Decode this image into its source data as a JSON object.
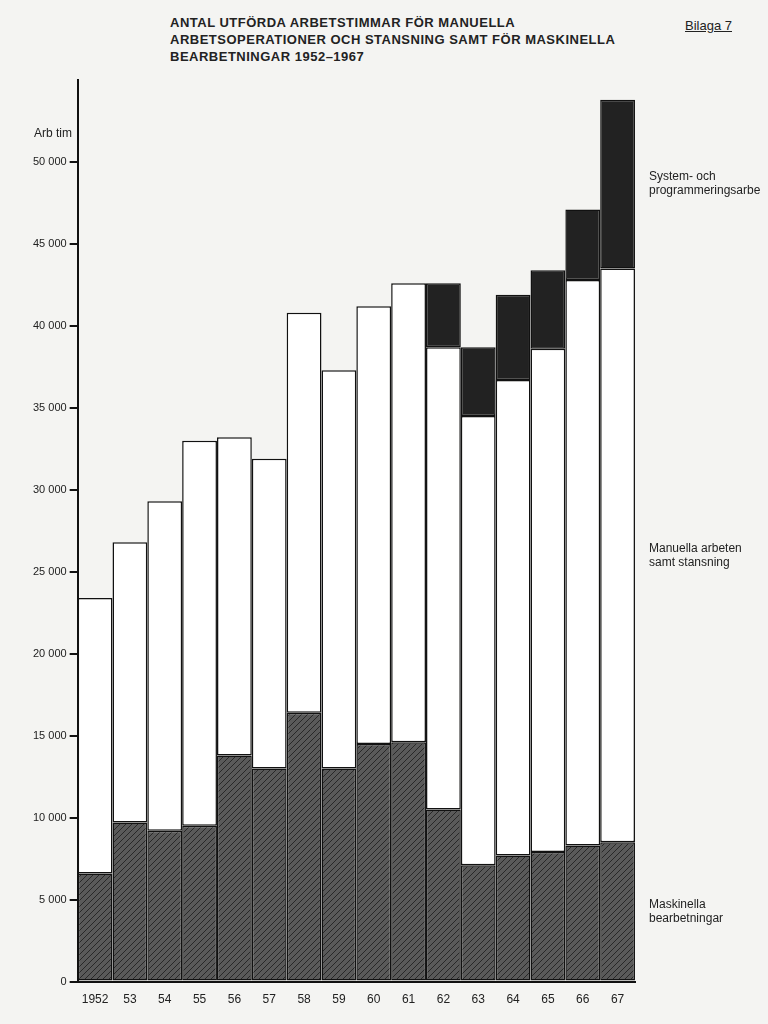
{
  "chart_data": {
    "type": "bar",
    "title": "ANTAL UTFÖRDA ARBETSTIMMAR FÖR MANUELLA ARBETSOPERATIONER OCH STANSNING SAMT FÖR MASKINELLA BEARBETNINGAR 1952–1967",
    "annotation": "Bilaga 7",
    "ylabel": "Arb tim",
    "categories": [
      "1952",
      "53",
      "54",
      "55",
      "56",
      "57",
      "58",
      "59",
      "60",
      "61",
      "62",
      "63",
      "64",
      "65",
      "66",
      "67"
    ],
    "series": [
      {
        "name": "Maskinella bearbetningar",
        "color": "#5a5a5a",
        "values": [
          6600,
          9700,
          9200,
          9500,
          13800,
          13000,
          16400,
          13000,
          14500,
          14600,
          10500,
          7100,
          7700,
          7900,
          8300,
          8500
        ]
      },
      {
        "name": "Manuella arbeten samt stansning",
        "color": "#ffffff",
        "values": [
          16800,
          17100,
          20100,
          23500,
          19400,
          18900,
          24400,
          24300,
          26700,
          28000,
          28200,
          27400,
          29000,
          30700,
          34500,
          35000
        ]
      },
      {
        "name": "System- och programmeringsarbete",
        "color": "#222222",
        "values": [
          null,
          null,
          null,
          null,
          null,
          null,
          null,
          null,
          null,
          null,
          3900,
          4200,
          5200,
          4800,
          4300,
          10300
        ]
      }
    ],
    "stacked": true,
    "grid": false,
    "ylim": [
      0,
      55000
    ],
    "yticks": [
      0,
      {
        "value": 5000,
        "label": "5 000"
      },
      {
        "value": 10000,
        "label": "10 000"
      },
      {
        "value": 15000,
        "label": "15 000"
      },
      {
        "value": 20000,
        "label": "20 000"
      },
      {
        "value": 25000,
        "label": "25 000"
      },
      {
        "value": 30000,
        "label": "30 000"
      },
      {
        "value": 35000,
        "label": "35 000"
      },
      {
        "value": 40000,
        "label": "40 000"
      },
      {
        "value": 45000,
        "label": "45 000"
      },
      {
        "value": 50000,
        "label": "50 000"
      }
    ]
  }
}
